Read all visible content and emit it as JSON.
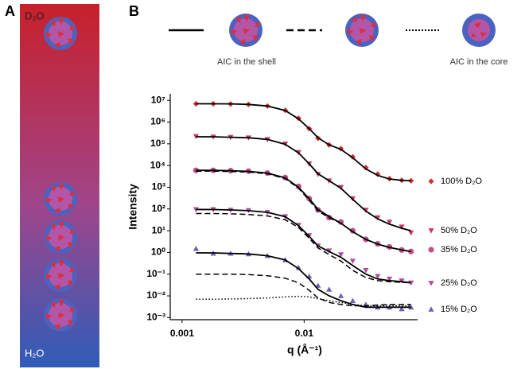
{
  "panels": [
    "A",
    "B"
  ],
  "gradient_labels": [
    "D₂O",
    "H₂O"
  ],
  "chart_data": {
    "type": "scatter",
    "xlabel": "q (Å⁻¹)",
    "ylabel": "Intensity",
    "xscale": "log",
    "yscale": "log",
    "xlim": [
      0.0008,
      0.085
    ],
    "ylim": [
      0.0008,
      20000000
    ],
    "xticks": [
      0.001,
      0.01
    ],
    "yticks": [
      {
        "value": 10000000,
        "label": "10⁷"
      },
      {
        "value": 1000000,
        "label": "10⁶"
      },
      {
        "value": 100000,
        "label": "10⁵"
      },
      {
        "value": 10000,
        "label": "10⁴"
      },
      {
        "value": 1000,
        "label": "10³"
      },
      {
        "value": 100,
        "label": "10²"
      },
      {
        "value": 10,
        "label": "10¹"
      },
      {
        "value": 1,
        "label": "10⁰"
      },
      {
        "value": 0.1,
        "label": "10⁻¹"
      },
      {
        "value": 0.01,
        "label": "10⁻²"
      },
      {
        "value": 0.001,
        "label": "10⁻³"
      }
    ],
    "fit_legend": [
      "AIC in the shell",
      "AIC in the core"
    ],
    "x": [
      0.0013,
      0.0018,
      0.0025,
      0.0035,
      0.005,
      0.007,
      0.009,
      0.011,
      0.013,
      0.016,
      0.02,
      0.025,
      0.032,
      0.04,
      0.05,
      0.063,
      0.075
    ],
    "series": [
      {
        "name": "100% D₂O",
        "color": "#d2302f",
        "marker": "diamond",
        "values": [
          7000000,
          7000000,
          6800000,
          6500000,
          5500000,
          3500000,
          1500000,
          500000,
          180000,
          90000,
          60000,
          25000,
          8000,
          4000,
          2500,
          2100,
          2000
        ]
      },
      {
        "name": "50% D₂O",
        "color": "#c83a66",
        "marker": "triangle-down",
        "values": [
          220000,
          210000,
          200000,
          190000,
          160000,
          100000,
          40000,
          12000,
          4000,
          2000,
          1000,
          300,
          90,
          40,
          25,
          15,
          8
        ]
      },
      {
        "name": "35% D₂O",
        "color": "#c0508a",
        "marker": "circle",
        "values": [
          6000,
          6000,
          5800,
          5500,
          4500,
          2800,
          1100,
          300,
          90,
          40,
          25,
          10,
          4,
          2.5,
          1.8,
          1.3,
          1.1
        ]
      },
      {
        "name": "25% D₂O",
        "color": "#b0509c",
        "marker": "triangle-down",
        "values": [
          95,
          95,
          90,
          85,
          70,
          45,
          18,
          6,
          2,
          1.2,
          0.8,
          0.4,
          0.15,
          0.08,
          0.06,
          0.05,
          0.04
        ]
      },
      {
        "name": "15% D₂O",
        "color": "#6d62b4",
        "marker": "triangle-up",
        "values": [
          1.5,
          0.9,
          0.9,
          0.85,
          0.7,
          0.45,
          0.2,
          0.08,
          0.03,
          0.02,
          0.01,
          0.006,
          0.004,
          0.003,
          0.003,
          0.0025,
          0.003
        ]
      }
    ],
    "fits": [
      {
        "linestyle": "solid",
        "color": "#000000",
        "values": [
          7000000,
          7000000,
          6900000,
          6500000,
          5500000,
          3400000,
          1400000,
          500000,
          190000,
          90000,
          55000,
          23000,
          7000,
          3500,
          2400,
          2100,
          2000
        ]
      },
      {
        "linestyle": "solid",
        "color": "#000000",
        "values": [
          210000,
          210000,
          200000,
          190000,
          160000,
          95000,
          38000,
          12000,
          4200,
          2000,
          900,
          280,
          80,
          35,
          20,
          13,
          10
        ]
      },
      {
        "linestyle": "solid",
        "color": "#000000",
        "values": [
          6000,
          6000,
          5800,
          5400,
          4500,
          2700,
          1000,
          300,
          95,
          45,
          22,
          9,
          4,
          2.4,
          1.7,
          1.3,
          1.1
        ]
      },
      {
        "linestyle": "solid",
        "color": "#000000",
        "values": [
          95,
          94,
          90,
          84,
          70,
          44,
          17,
          5.5,
          2,
          1.1,
          0.6,
          0.25,
          0.1,
          0.06,
          0.05,
          0.045,
          0.04
        ]
      },
      {
        "linestyle": "solid",
        "color": "#000000",
        "values": [
          0.95,
          0.95,
          0.9,
          0.85,
          0.7,
          0.45,
          0.18,
          0.06,
          0.02,
          0.01,
          0.006,
          0.004,
          0.003,
          0.003,
          0.003,
          0.003,
          0.003
        ]
      },
      {
        "linestyle": "dashed",
        "color": "#000000",
        "values": [
          5500,
          5500,
          5300,
          5000,
          4200,
          2500,
          900,
          250,
          80,
          40,
          22,
          9,
          4,
          2.4,
          1.7,
          1.3,
          1.1
        ]
      },
      {
        "linestyle": "dashed",
        "color": "#000000",
        "values": [
          62,
          62,
          60,
          56,
          48,
          32,
          14,
          4.5,
          1.6,
          0.8,
          0.4,
          0.15,
          0.07,
          0.05,
          0.045,
          0.042,
          0.04
        ]
      },
      {
        "linestyle": "dashed",
        "color": "#000000",
        "values": [
          0.1,
          0.1,
          0.1,
          0.095,
          0.085,
          0.065,
          0.04,
          0.018,
          0.008,
          0.005,
          0.004,
          0.0035,
          0.0035,
          0.0038,
          0.004,
          0.004,
          0.004
        ]
      },
      {
        "linestyle": "dotted",
        "color": "#000000",
        "values": [
          0.007,
          0.007,
          0.0072,
          0.0075,
          0.008,
          0.009,
          0.0095,
          0.009,
          0.0075,
          0.006,
          0.005,
          0.004,
          0.0035,
          0.0035,
          0.0035,
          0.0035,
          0.0035
        ]
      }
    ]
  }
}
